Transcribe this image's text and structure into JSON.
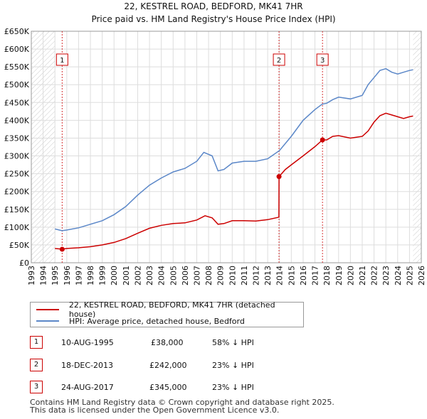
{
  "chart_data": {
    "type": "line",
    "title": "22, KESTREL ROAD, BEDFORD, MK41 7HR",
    "subtitle": "Price paid vs. HM Land Registry's House Price Index (HPI)",
    "xlabel": "",
    "ylabel": "",
    "xlim": [
      1993,
      2026
    ],
    "ylim": [
      0,
      650000
    ],
    "x_ticks": [
      "1993",
      "1994",
      "1995",
      "1996",
      "1997",
      "1998",
      "1999",
      "2000",
      "2001",
      "2002",
      "2003",
      "2004",
      "2005",
      "2006",
      "2007",
      "2008",
      "2009",
      "2010",
      "2011",
      "2012",
      "2013",
      "2014",
      "2015",
      "2016",
      "2017",
      "2018",
      "2019",
      "2020",
      "2021",
      "2022",
      "2023",
      "2024",
      "2025",
      "2026"
    ],
    "y_ticks": [
      {
        "value": 0,
        "label": "£0"
      },
      {
        "value": 50000,
        "label": "£50K"
      },
      {
        "value": 100000,
        "label": "£100K"
      },
      {
        "value": 150000,
        "label": "£150K"
      },
      {
        "value": 200000,
        "label": "£200K"
      },
      {
        "value": 250000,
        "label": "£250K"
      },
      {
        "value": 300000,
        "label": "£300K"
      },
      {
        "value": 350000,
        "label": "£350K"
      },
      {
        "value": 400000,
        "label": "£400K"
      },
      {
        "value": 450000,
        "label": "£450K"
      },
      {
        "value": 500000,
        "label": "£500K"
      },
      {
        "value": 550000,
        "label": "£550K"
      },
      {
        "value": 600000,
        "label": "£600K"
      },
      {
        "value": 650000,
        "label": "£650K"
      }
    ],
    "series": [
      {
        "name": "22, KESTREL ROAD, BEDFORD, MK41 7HR (detached house)",
        "color": "#cc0000",
        "x": [
          1995.0,
          1995.6,
          1996.0,
          1997.0,
          1998.0,
          1999.0,
          2000.0,
          2001.0,
          2002.0,
          2003.0,
          2004.0,
          2005.0,
          2006.0,
          2007.0,
          2007.7,
          2008.3,
          2008.8,
          2009.3,
          2010.0,
          2011.0,
          2012.0,
          2013.0,
          2013.95,
          2013.96,
          2014.5,
          2015.0,
          2016.0,
          2017.0,
          2017.64,
          2018.0,
          2018.5,
          2019.0,
          2020.0,
          2021.0,
          2021.5,
          2022.0,
          2022.5,
          2023.0,
          2023.5,
          2024.0,
          2024.5,
          2025.0,
          2025.3
        ],
        "values": [
          40000,
          38000,
          40000,
          42000,
          45000,
          50000,
          57000,
          68000,
          83000,
          97000,
          105000,
          110000,
          112000,
          120000,
          132000,
          126000,
          108000,
          110000,
          118000,
          118000,
          117000,
          121000,
          128000,
          242000,
          262000,
          275000,
          300000,
          326000,
          345000,
          345000,
          355000,
          357000,
          350000,
          355000,
          370000,
          395000,
          413000,
          420000,
          415000,
          410000,
          405000,
          410000,
          412000
        ]
      },
      {
        "name": "HPI: Average price, detached house, Bedford",
        "color": "#5b87c8",
        "x": [
          1995.0,
          1995.6,
          1996.0,
          1997.0,
          1998.0,
          1999.0,
          2000.0,
          2001.0,
          2002.0,
          2003.0,
          2004.0,
          2005.0,
          2006.0,
          2007.0,
          2007.6,
          2008.3,
          2008.8,
          2009.3,
          2010.0,
          2011.0,
          2012.0,
          2013.0,
          2014.0,
          2015.0,
          2016.0,
          2017.0,
          2017.6,
          2018.0,
          2018.5,
          2019.0,
          2020.0,
          2021.0,
          2021.5,
          2022.0,
          2022.5,
          2023.0,
          2023.5,
          2024.0,
          2024.5,
          2025.0,
          2025.3
        ],
        "values": [
          95000,
          90000,
          92000,
          98000,
          108000,
          118000,
          135000,
          158000,
          190000,
          218000,
          238000,
          255000,
          265000,
          285000,
          310000,
          300000,
          258000,
          262000,
          280000,
          285000,
          285000,
          292000,
          315000,
          355000,
          400000,
          430000,
          445000,
          448000,
          458000,
          465000,
          460000,
          470000,
          500000,
          520000,
          540000,
          545000,
          535000,
          530000,
          535000,
          540000,
          542000
        ]
      }
    ],
    "sales": [
      {
        "marker": "1",
        "x": 1995.61,
        "value": 38000
      },
      {
        "marker": "2",
        "x": 2013.96,
        "value": 242000
      },
      {
        "marker": "3",
        "x": 2017.64,
        "value": 345000
      }
    ],
    "hatch_regions": [
      [
        1993,
        1995.0
      ],
      [
        2025.3,
        2026
      ]
    ]
  },
  "legend": {
    "entries": [
      {
        "label": "22, KESTREL ROAD, BEDFORD, MK41 7HR (detached house)",
        "color": "#cc0000"
      },
      {
        "label": "HPI: Average price, detached house, Bedford",
        "color": "#5b87c8"
      }
    ]
  },
  "transactions": [
    {
      "num": "1",
      "date": "10-AUG-1995",
      "price": "£38,000",
      "hpi": "58% ↓ HPI"
    },
    {
      "num": "2",
      "date": "18-DEC-2013",
      "price": "£242,000",
      "hpi": "23% ↓ HPI"
    },
    {
      "num": "3",
      "date": "24-AUG-2017",
      "price": "£345,000",
      "hpi": "23% ↓ HPI"
    }
  ],
  "footer": {
    "line1": "Contains HM Land Registry data © Crown copyright and database right 2025.",
    "line2": "This data is licensed under the Open Government Licence v3.0."
  }
}
